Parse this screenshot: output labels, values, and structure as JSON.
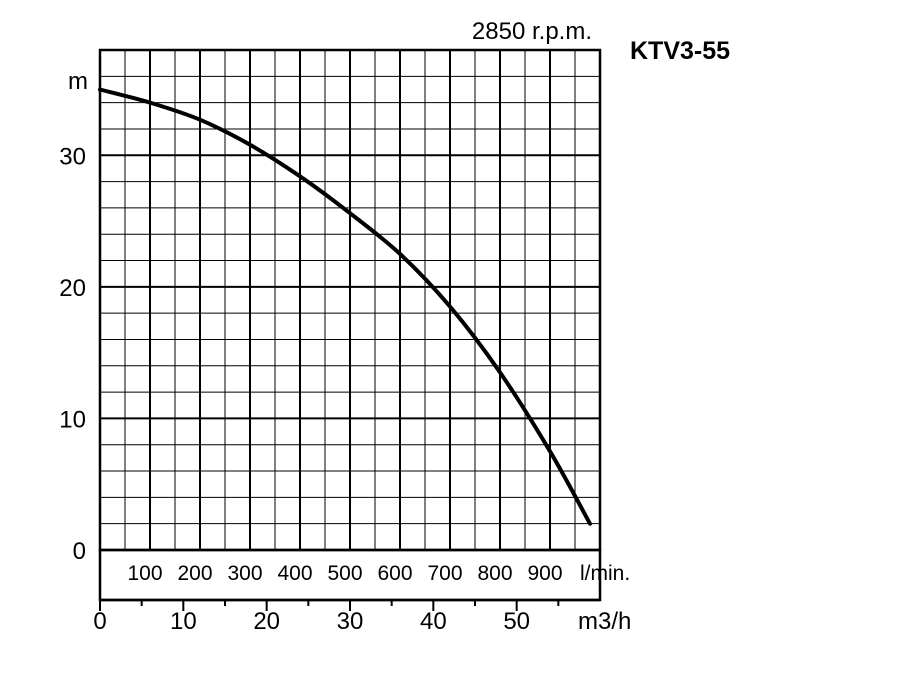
{
  "chart_data": {
    "type": "line",
    "title": "KTV3-55",
    "subtitle": "2850 r.p.m.",
    "ylabel": "m",
    "xlabel_flow_lmin": "l/min.",
    "xlabel_flow_m3h": "m3/h",
    "ylim": [
      0,
      38
    ],
    "xlim_lmin": [
      0,
      1000
    ],
    "xlim_m3h": [
      0,
      60
    ],
    "grid": true,
    "y_ticks": [
      "0",
      "10",
      "20",
      "30"
    ],
    "lmin_ticks": [
      "100",
      "200",
      "300",
      "400",
      "500",
      "600",
      "700",
      "800",
      "900"
    ],
    "m3h_ticks": [
      "0",
      "10",
      "20",
      "30",
      "40",
      "50"
    ],
    "series": [
      {
        "x_lmin": [
          0,
          100,
          200,
          300,
          400,
          500,
          600,
          700,
          800,
          900,
          980
        ],
        "y": [
          35,
          34,
          32.7,
          30.8,
          28.4,
          25.6,
          22.5,
          18.5,
          13.5,
          7.5,
          2
        ]
      }
    ]
  }
}
